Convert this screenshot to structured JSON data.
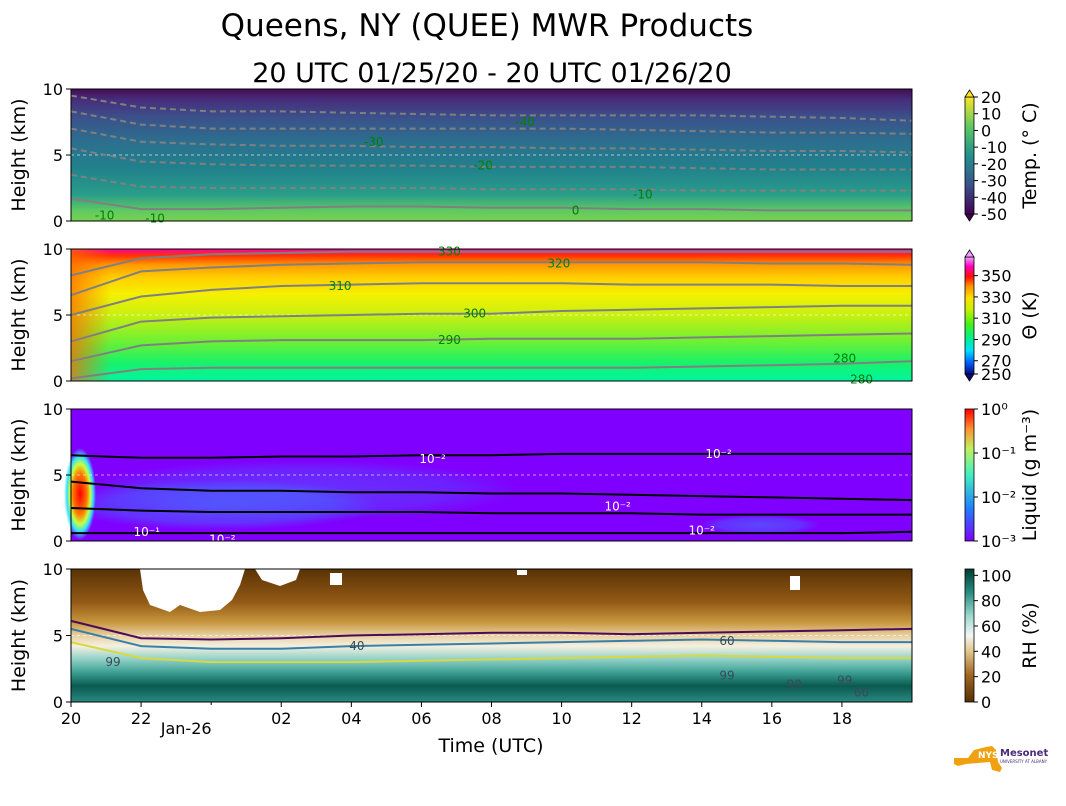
{
  "title": "Queens, NY (QUEE) MWR Products",
  "subtitle": "20 UTC 01/25/20 - 20 UTC 01/26/20",
  "xlabel": "Time (UTC)",
  "logo": {
    "text": "NYS Mesonet",
    "subtext": "UNIVERSITY AT ALBANY",
    "icon": "new-york-state-icon"
  },
  "chart_data": [
    {
      "type": "heatmap",
      "name": "temperature",
      "ylabel": "Height (km)",
      "ylim": [
        0,
        10
      ],
      "yticks": [
        "0",
        "5",
        "10"
      ],
      "colorbar": {
        "label": "Temp. (° C)",
        "ticks": [
          "20",
          "10",
          "0",
          "-10",
          "-20",
          "-30",
          "-40",
          "-50"
        ],
        "range": [
          -50,
          20
        ],
        "colormap": "viridis"
      },
      "contour_labels": [
        "-40",
        "-30",
        "-20",
        "-10",
        "0",
        "-10",
        "-10"
      ],
      "contours": [
        {
          "level": -50,
          "y": [
            9.5,
            8.6,
            8.3,
            8.3,
            8.2,
            8.1,
            8.0,
            8.0,
            8.0,
            8.0,
            7.9,
            7.8,
            7.6
          ]
        },
        {
          "level": -40,
          "y": [
            8.3,
            7.3,
            7.0,
            7.0,
            7.0,
            7.0,
            7.0,
            7.0,
            6.9,
            6.8,
            6.7,
            6.7,
            6.6
          ]
        },
        {
          "level": -30,
          "y": [
            7.0,
            6.0,
            5.8,
            5.7,
            5.7,
            5.6,
            5.6,
            5.5,
            5.5,
            5.4,
            5.3,
            5.3,
            5.2
          ]
        },
        {
          "level": -20,
          "y": [
            5.5,
            4.5,
            4.3,
            4.2,
            4.2,
            4.2,
            4.1,
            4.1,
            4.1,
            4.0,
            3.9,
            3.9,
            3.9
          ]
        },
        {
          "level": -10,
          "y": [
            3.5,
            2.6,
            2.5,
            2.5,
            2.5,
            2.5,
            2.4,
            2.4,
            2.4,
            2.3,
            2.3,
            2.3,
            2.3
          ]
        },
        {
          "level": 0,
          "y": [
            1.7,
            0.9,
            0.9,
            1.0,
            1.1,
            1.1,
            1.0,
            1.0,
            0.9,
            0.9,
            0.8,
            0.8,
            0.8
          ]
        }
      ]
    },
    {
      "type": "heatmap",
      "name": "potential-temperature",
      "ylabel": "Height (km)",
      "ylim": [
        0,
        10
      ],
      "yticks": [
        "0",
        "5",
        "10"
      ],
      "colorbar": {
        "label": "Θ (K)",
        "ticks": [
          "350",
          "330",
          "310",
          "290",
          "270",
          "250"
        ],
        "range": [
          250,
          360
        ],
        "colormap": "gist_ncar"
      },
      "contour_labels": [
        "330",
        "320",
        "310",
        "300",
        "290",
        "280",
        "280"
      ],
      "contours": [
        {
          "level": 330,
          "y": [
            8.0,
            9.3,
            9.6,
            9.7,
            9.8,
            9.8,
            9.8,
            9.8,
            9.8,
            9.8,
            9.8,
            9.8,
            9.8
          ]
        },
        {
          "level": 320,
          "y": [
            6.5,
            8.3,
            8.6,
            8.8,
            8.9,
            9.0,
            9.0,
            9.0,
            9.0,
            9.0,
            8.9,
            8.9,
            8.8
          ]
        },
        {
          "level": 310,
          "y": [
            5.0,
            6.4,
            6.9,
            7.2,
            7.3,
            7.4,
            7.4,
            7.4,
            7.3,
            7.3,
            7.3,
            7.2,
            7.2
          ]
        },
        {
          "level": 300,
          "y": [
            3.0,
            4.5,
            4.8,
            4.9,
            5.0,
            5.1,
            5.1,
            5.3,
            5.4,
            5.5,
            5.6,
            5.7,
            5.7
          ]
        },
        {
          "level": 290,
          "y": [
            1.5,
            2.7,
            3.0,
            3.1,
            3.1,
            3.1,
            3.2,
            3.2,
            3.2,
            3.3,
            3.4,
            3.5,
            3.6
          ]
        },
        {
          "level": 280,
          "y": [
            0.2,
            0.9,
            1.0,
            1.0,
            1.0,
            1.0,
            1.0,
            1.0,
            1.0,
            1.1,
            1.2,
            1.3,
            1.5
          ]
        }
      ]
    },
    {
      "type": "heatmap",
      "name": "liquid-water",
      "ylabel": "Height (km)",
      "ylim": [
        0,
        10
      ],
      "yticks": [
        "0",
        "5",
        "10"
      ],
      "colorbar": {
        "label": "Liquid (g m⁻³)",
        "ticks": [
          "10⁰",
          "10⁻¹",
          "10⁻²",
          "10⁻³"
        ],
        "range": [
          0.001,
          1
        ],
        "scale": "log",
        "colormap": "rainbow"
      },
      "contour_labels": [
        "10⁻²",
        "10⁻²",
        "10⁻¹",
        "10⁻²",
        "10⁻²",
        "10⁻²"
      ],
      "contours": [
        {
          "level": 0.01,
          "y": [
            6.5,
            6.3,
            6.3,
            6.4,
            6.4,
            6.5,
            6.5,
            6.6,
            6.6,
            6.6,
            6.6,
            6.6,
            6.6
          ]
        },
        {
          "level": 0.01,
          "y": [
            4.5,
            4.0,
            3.8,
            3.8,
            3.7,
            3.7,
            3.6,
            3.6,
            3.5,
            3.4,
            3.3,
            3.2,
            3.1
          ]
        },
        {
          "level": 0.01,
          "y": [
            2.5,
            2.3,
            2.2,
            2.2,
            2.2,
            2.2,
            2.1,
            2.1,
            2.1,
            2.0,
            2.0,
            2.0,
            2.0
          ]
        },
        {
          "level": 0.01,
          "y": [
            0.6,
            0.6,
            0.6,
            0.6,
            0.6,
            0.6,
            0.6,
            0.6,
            0.6,
            0.6,
            0.6,
            0.6,
            0.7
          ]
        }
      ]
    },
    {
      "type": "heatmap",
      "name": "relative-humidity",
      "ylabel": "Height (km)",
      "ylim": [
        0,
        10
      ],
      "yticks": [
        "0",
        "5",
        "10"
      ],
      "colorbar": {
        "label": "RH (%)",
        "ticks": [
          "100",
          "80",
          "60",
          "40",
          "20",
          "0"
        ],
        "range": [
          0,
          105
        ],
        "colormap": "BrBG"
      },
      "contour_labels": [
        "40",
        "60",
        "99",
        "99",
        "90",
        "60",
        "99"
      ],
      "contours": [
        {
          "level": 40,
          "y": [
            6.1,
            4.8,
            4.7,
            4.8,
            5.0,
            5.1,
            5.2,
            5.2,
            5.1,
            5.2,
            5.3,
            5.4,
            5.5
          ]
        },
        {
          "level": 60,
          "y": [
            5.5,
            4.2,
            4.0,
            4.0,
            4.2,
            4.3,
            4.4,
            4.5,
            4.6,
            4.7,
            4.6,
            4.5,
            4.5
          ]
        },
        {
          "level": 90,
          "y": [
            4.5,
            3.3,
            3.0,
            3.0,
            3.0,
            3.1,
            3.2,
            3.3,
            3.4,
            3.5,
            3.4,
            3.3,
            3.3
          ]
        }
      ]
    }
  ],
  "xticks": [
    {
      "hour": 0,
      "label": "20"
    },
    {
      "hour": 2,
      "label": "22"
    },
    {
      "hour": 6,
      "label": "02"
    },
    {
      "hour": 8,
      "label": "04"
    },
    {
      "hour": 10,
      "label": "06"
    },
    {
      "hour": 12,
      "label": "08"
    },
    {
      "hour": 14,
      "label": "10"
    },
    {
      "hour": 16,
      "label": "12"
    },
    {
      "hour": 18,
      "label": "14"
    },
    {
      "hour": 20,
      "label": "16"
    },
    {
      "hour": 22,
      "label": "18"
    }
  ],
  "xticks_minor": [
    {
      "hour": 4,
      "label": "Jan-26"
    }
  ],
  "xlim_hours": [
    0,
    24
  ]
}
